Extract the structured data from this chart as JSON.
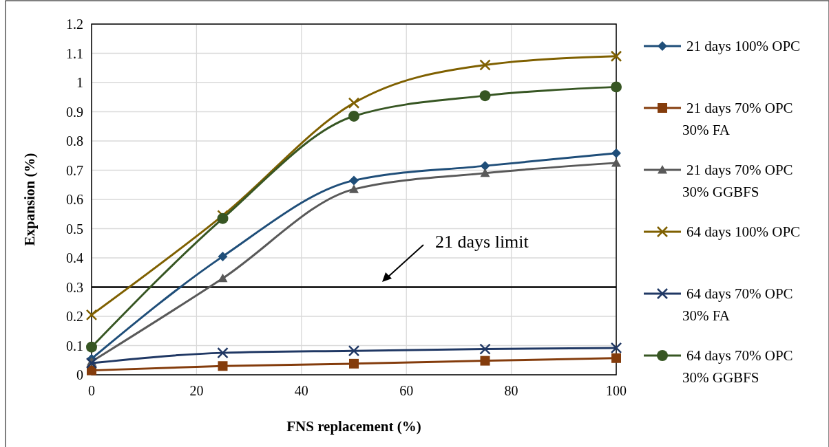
{
  "chart_data": {
    "type": "line",
    "xlabel": "FNS replacement (%)",
    "ylabel": "Expansion (%)",
    "x": [
      0,
      25,
      50,
      75,
      100
    ],
    "xlim": [
      0,
      100
    ],
    "xticks": [
      0,
      20,
      40,
      60,
      80,
      100
    ],
    "ylim": [
      0,
      1.2
    ],
    "yticks": [
      0,
      0.1,
      0.2,
      0.3,
      0.4,
      0.5,
      0.6,
      0.7,
      0.8,
      0.9,
      1,
      1.1,
      1.2
    ],
    "grid": true,
    "legend": "right",
    "line_style": "solid",
    "series": [
      {
        "name": "21 days 100% OPC",
        "color": "#1f4e79",
        "marker": "diamond",
        "values": [
          0.055,
          0.405,
          0.665,
          0.715,
          0.758
        ]
      },
      {
        "name": "21 days  70% OPC 30% FA",
        "color": "#843c0c",
        "marker": "square",
        "values": [
          0.015,
          0.03,
          0.038,
          0.048,
          0.057
        ]
      },
      {
        "name": "21 days 70% OPC 30% GGBFS",
        "color": "#595959",
        "marker": "triangle",
        "values": [
          0.045,
          0.33,
          0.635,
          0.69,
          0.725
        ]
      },
      {
        "name": "64 days 100% OPC",
        "color": "#7f6000",
        "marker": "cross",
        "values": [
          0.205,
          0.545,
          0.93,
          1.06,
          1.09
        ]
      },
      {
        "name": "64 days 70% OPC 30% FA",
        "color": "#203864",
        "marker": "cross",
        "values": [
          0.04,
          0.075,
          0.082,
          0.088,
          0.092
        ]
      },
      {
        "name": "64 days 70% OPC 30% GGBFS",
        "color": "#375623",
        "marker": "circle",
        "values": [
          0.095,
          0.535,
          0.885,
          0.955,
          0.985
        ]
      }
    ],
    "ref_lines": [
      {
        "axis": "y",
        "value": 0.3,
        "label": "21 days limit",
        "color": "#000000",
        "line_style": "solid"
      }
    ]
  }
}
